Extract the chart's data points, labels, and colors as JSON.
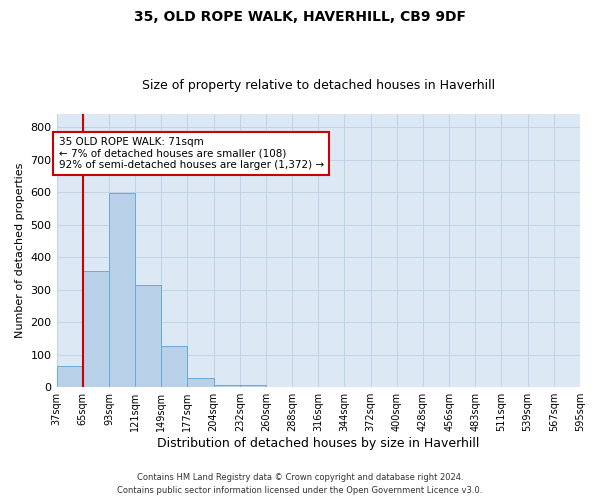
{
  "title": "35, OLD ROPE WALK, HAVERHILL, CB9 9DF",
  "subtitle": "Size of property relative to detached houses in Haverhill",
  "xlabel": "Distribution of detached houses by size in Haverhill",
  "ylabel": "Number of detached properties",
  "bar_values": [
    65,
    358,
    597,
    315,
    128,
    28,
    7,
    8,
    0,
    0,
    0,
    0,
    0,
    0,
    0,
    0,
    0,
    0,
    0,
    0
  ],
  "bin_labels": [
    "37sqm",
    "65sqm",
    "93sqm",
    "121sqm",
    "149sqm",
    "177sqm",
    "204sqm",
    "232sqm",
    "260sqm",
    "288sqm",
    "316sqm",
    "344sqm",
    "372sqm",
    "400sqm",
    "428sqm",
    "456sqm",
    "483sqm",
    "511sqm",
    "539sqm",
    "567sqm",
    "595sqm"
  ],
  "bar_color": "#b8d0e8",
  "bar_edge_color": "#6aaad4",
  "vline_x_index": 1,
  "vline_color": "#cc0000",
  "annotation_line1": "35 OLD ROPE WALK: 71sqm",
  "annotation_line2": "← 7% of detached houses are smaller (108)",
  "annotation_line3": "92% of semi-detached houses are larger (1,372) →",
  "annotation_box_color": "#ffffff",
  "annotation_box_edge": "#cc0000",
  "ylim": [
    0,
    840
  ],
  "yticks": [
    0,
    100,
    200,
    300,
    400,
    500,
    600,
    700,
    800
  ],
  "grid_color": "#c0d4e8",
  "background_color": "#dce9f5",
  "footer_line1": "Contains HM Land Registry data © Crown copyright and database right 2024.",
  "footer_line2": "Contains public sector information licensed under the Open Government Licence v3.0.",
  "title_fontsize": 10,
  "subtitle_fontsize": 9,
  "ylabel_fontsize": 8,
  "xlabel_fontsize": 9,
  "tick_fontsize": 7,
  "footer_fontsize": 6
}
